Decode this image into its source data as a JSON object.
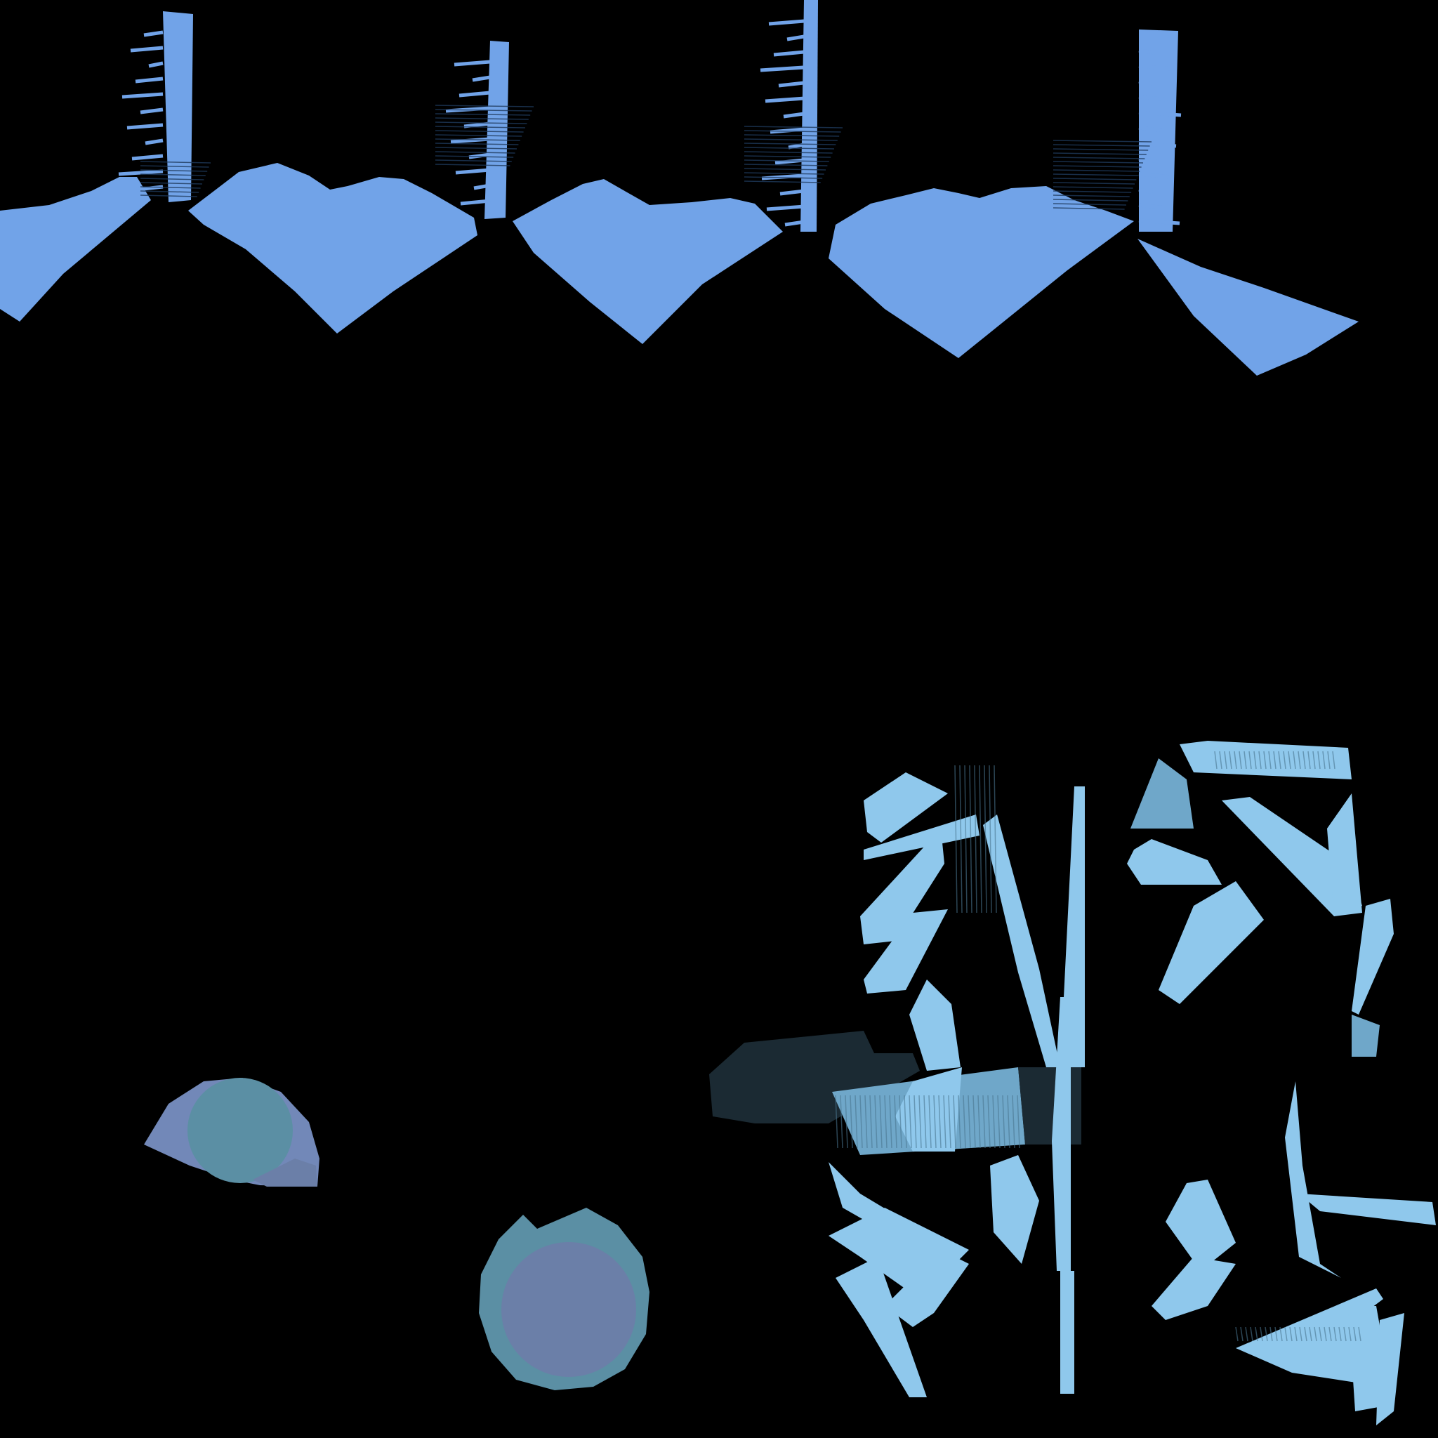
{
  "scene": {
    "kind": "texture-atlas-uv-layout",
    "background_color": "#000000",
    "colors": {
      "top_band": "#71a3e8",
      "top_band_shade": "#1f3a5c",
      "shards_light": "#8fc8ec",
      "shards_mid": "#6fa7c9",
      "shards_dark": "#4a7690",
      "shards_deep": "#1b2a33",
      "gem_teal": "#5b8fa4",
      "gem_violet": "#6b7fa8",
      "gem_edge": "#7288b8"
    },
    "regions": [
      {
        "id": "top-band",
        "description_icon": "uv-strip-icon"
      },
      {
        "id": "gem-small",
        "description_icon": "gem-icon"
      },
      {
        "id": "gem-large",
        "description_icon": "gem-icon"
      },
      {
        "id": "shard-cluster",
        "description_icon": "shard-icon"
      }
    ]
  }
}
